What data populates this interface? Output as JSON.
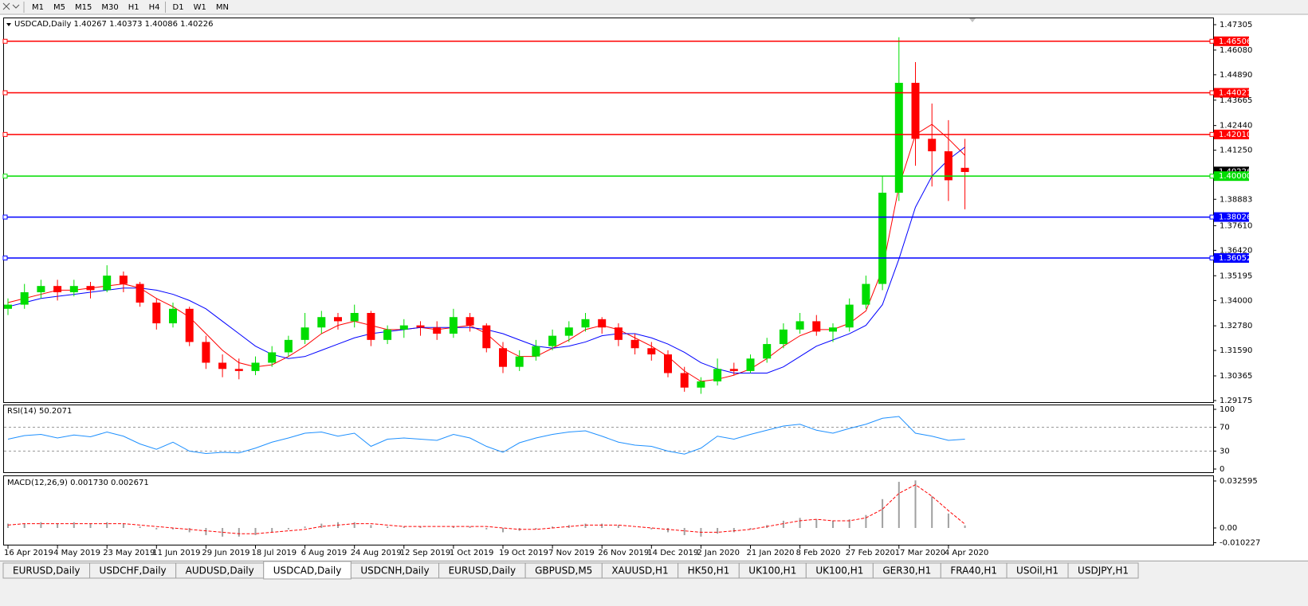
{
  "toolbar": {
    "buttons": [
      "M1",
      "M5",
      "M15",
      "M30",
      "H1",
      "H4",
      "D1",
      "W1",
      "MN"
    ]
  },
  "tabs": {
    "items": [
      "EURUSD,Daily",
      "USDCHF,Daily",
      "AUDUSD,Daily",
      "USDCAD,Daily",
      "USDCNH,Daily",
      "EURUSD,Daily",
      "GBPUSD,M5",
      "XAUUSD,H1",
      "HK50,H1",
      "UK100,H1",
      "UK100,H1",
      "GER30,H1",
      "FRA40,H1",
      "USOil,H1",
      "USDJPY,H1"
    ],
    "active": 3
  },
  "chart_data": [
    {
      "type": "candlestick",
      "title": "USDCAD,Daily  1.40267 1.40373 1.40086 1.40226",
      "categories": [
        "16 Apr 2019",
        null,
        null,
        "4 May 2019",
        null,
        null,
        "23 May 2019",
        null,
        null,
        "11 Jun 2019",
        null,
        null,
        "29 Jun 2019",
        null,
        null,
        "18 Jul 2019",
        null,
        null,
        "6 Aug 2019",
        null,
        null,
        "24 Aug 2019",
        null,
        null,
        "12 Sep 2019",
        null,
        null,
        "1 Oct 2019",
        null,
        null,
        "19 Oct 2019",
        null,
        null,
        "7 Nov 2019",
        null,
        null,
        "26 Nov 2019",
        null,
        null,
        "14 Dec 2019",
        null,
        null,
        "2 Jan 2020",
        null,
        null,
        "21 Jan 2020",
        null,
        null,
        "8 Feb 2020",
        null,
        null,
        "27 Feb 2020",
        null,
        null,
        "17 Mar 2020",
        null,
        null,
        "4 Apr 2020",
        null
      ],
      "open": [
        1.336,
        1.338,
        1.344,
        1.347,
        1.344,
        1.347,
        1.345,
        1.352,
        1.348,
        1.339,
        1.329,
        1.336,
        1.32,
        1.31,
        1.307,
        1.306,
        1.31,
        1.315,
        1.321,
        1.327,
        1.332,
        1.33,
        1.334,
        1.321,
        1.326,
        1.328,
        1.327,
        1.324,
        1.332,
        1.328,
        1.317,
        1.308,
        1.313,
        1.318,
        1.323,
        1.327,
        1.331,
        1.327,
        1.321,
        1.317,
        1.314,
        1.305,
        1.298,
        1.301,
        1.307,
        1.306,
        1.312,
        1.319,
        1.326,
        1.33,
        1.325,
        1.327,
        1.338,
        1.348,
        1.392,
        1.445,
        1.418,
        1.412,
        1.404
      ],
      "high": [
        1.341,
        1.348,
        1.35,
        1.35,
        1.35,
        1.349,
        1.357,
        1.354,
        1.349,
        1.341,
        1.339,
        1.337,
        1.323,
        1.314,
        1.312,
        1.313,
        1.318,
        1.323,
        1.334,
        1.335,
        1.334,
        1.338,
        1.335,
        1.328,
        1.331,
        1.33,
        1.33,
        1.336,
        1.334,
        1.329,
        1.32,
        1.316,
        1.321,
        1.326,
        1.33,
        1.334,
        1.332,
        1.329,
        1.324,
        1.32,
        1.316,
        1.308,
        1.303,
        1.312,
        1.31,
        1.314,
        1.322,
        1.329,
        1.334,
        1.333,
        1.329,
        1.341,
        1.352,
        1.4,
        1.467,
        1.455,
        1.435,
        1.427,
        1.418
      ],
      "low": [
        1.333,
        1.336,
        1.341,
        1.34,
        1.342,
        1.341,
        1.344,
        1.344,
        1.337,
        1.326,
        1.327,
        1.318,
        1.307,
        1.303,
        1.302,
        1.304,
        1.308,
        1.313,
        1.319,
        1.324,
        1.326,
        1.327,
        1.318,
        1.319,
        1.322,
        1.323,
        1.321,
        1.322,
        1.325,
        1.315,
        1.305,
        1.306,
        1.311,
        1.316,
        1.32,
        1.325,
        1.324,
        1.318,
        1.314,
        1.311,
        1.303,
        1.296,
        1.295,
        1.299,
        1.304,
        1.305,
        1.31,
        1.317,
        1.324,
        1.323,
        1.32,
        1.325,
        1.336,
        1.345,
        1.388,
        1.405,
        1.395,
        1.388,
        1.384
      ],
      "close": [
        1.338,
        1.344,
        1.347,
        1.344,
        1.347,
        1.345,
        1.352,
        1.348,
        1.339,
        1.329,
        1.336,
        1.32,
        1.31,
        1.307,
        1.306,
        1.31,
        1.315,
        1.321,
        1.327,
        1.332,
        1.33,
        1.334,
        1.321,
        1.326,
        1.328,
        1.327,
        1.324,
        1.332,
        1.328,
        1.317,
        1.308,
        1.313,
        1.318,
        1.323,
        1.327,
        1.331,
        1.327,
        1.321,
        1.317,
        1.314,
        1.305,
        1.298,
        1.301,
        1.307,
        1.306,
        1.312,
        1.319,
        1.326,
        1.33,
        1.325,
        1.327,
        1.338,
        1.348,
        1.392,
        1.445,
        1.418,
        1.412,
        1.398,
        1.402
      ],
      "up_color": "#00dd00",
      "down_color": "#ff0000",
      "series": [
        {
          "color": "#ff0000",
          "values": [
            1.339,
            1.341,
            1.343,
            1.345,
            1.345,
            1.346,
            1.347,
            1.348,
            1.346,
            1.341,
            1.337,
            1.332,
            1.324,
            1.316,
            1.31,
            1.308,
            1.309,
            1.313,
            1.318,
            1.324,
            1.328,
            1.33,
            1.328,
            1.326,
            1.326,
            1.327,
            1.326,
            1.327,
            1.328,
            1.324,
            1.317,
            1.313,
            1.313,
            1.317,
            1.321,
            1.326,
            1.328,
            1.326,
            1.322,
            1.318,
            1.313,
            1.306,
            1.301,
            1.302,
            1.304,
            1.307,
            1.312,
            1.318,
            1.323,
            1.326,
            1.326,
            1.329,
            1.335,
            1.355,
            1.395,
            1.42,
            1.425,
            1.418,
            1.41
          ]
        },
        {
          "color": "#0000ff",
          "values": [
            1.337,
            1.339,
            1.341,
            1.342,
            1.343,
            1.344,
            1.345,
            1.346,
            1.346,
            1.345,
            1.343,
            1.34,
            1.336,
            1.33,
            1.324,
            1.318,
            1.314,
            1.312,
            1.313,
            1.316,
            1.319,
            1.322,
            1.324,
            1.325,
            1.326,
            1.327,
            1.327,
            1.327,
            1.327,
            1.326,
            1.324,
            1.321,
            1.318,
            1.317,
            1.318,
            1.32,
            1.323,
            1.324,
            1.324,
            1.322,
            1.319,
            1.315,
            1.31,
            1.307,
            1.305,
            1.305,
            1.305,
            1.308,
            1.313,
            1.318,
            1.321,
            1.324,
            1.328,
            1.338,
            1.36,
            1.385,
            1.4,
            1.408,
            1.414
          ]
        }
      ],
      "ylim": [
        1.29098,
        1.47612
      ],
      "yticks": [
        1.47305,
        {
          "value": 1.4608,
          "label": "1.46080"
        },
        {
          "value": 1.4489,
          "label": "1.44890"
        },
        1.43665,
        {
          "value": 1.4244,
          "label": "1.42440"
        },
        {
          "value": 1.4125,
          "label": "1.41250"
        },
        1.38883,
        {
          "value": 1.3761,
          "label": "1.37610"
        },
        {
          "value": 1.3642,
          "label": "1.36420"
        },
        1.35195,
        {
          "value": 1.34,
          "label": "1.34000"
        },
        {
          "value": 1.3278,
          "label": "1.32780"
        },
        {
          "value": 1.3159,
          "label": "1.31590"
        },
        1.30365,
        1.29175
      ],
      "current_price": 1.40226,
      "levels": [
        {
          "value": 1.46506,
          "label": "1.46506",
          "color": "#ff0000"
        },
        {
          "value": 1.44021,
          "label": "1.44021",
          "color": "#ff0000"
        },
        {
          "value": 1.4201,
          "label": "1.42010",
          "color": "#ff0000"
        },
        {
          "value": 1.4,
          "label": "1.40000",
          "color": "#00dd00"
        },
        {
          "value": 1.38026,
          "label": "1.38026",
          "color": "#0000ff"
        },
        {
          "value": 1.36052,
          "label": "1.36052",
          "color": "#0000ff"
        }
      ]
    },
    {
      "type": "line",
      "title": "RSI(14) 50.2071",
      "color": "#1e90ff",
      "values": [
        50,
        56,
        58,
        52,
        57,
        54,
        62,
        55,
        42,
        33,
        45,
        30,
        26,
        28,
        27,
        35,
        45,
        52,
        60,
        62,
        55,
        60,
        38,
        50,
        52,
        50,
        48,
        58,
        52,
        38,
        28,
        44,
        52,
        58,
        62,
        64,
        55,
        45,
        40,
        38,
        30,
        25,
        35,
        55,
        50,
        58,
        65,
        72,
        75,
        65,
        60,
        68,
        75,
        85,
        88,
        60,
        55,
        48,
        50
      ],
      "ylim": [
        -4,
        106.7
      ],
      "yticks": [
        100,
        70,
        30,
        0
      ],
      "levels": [
        70,
        30
      ]
    },
    {
      "type": "macd",
      "title": "MACD(12,26,9) 0.001730 0.002671",
      "histogram_color": "#a0a0a0",
      "signal_color": "#ff0000",
      "histogram": [
        0.003,
        0.003,
        0.004,
        0.003,
        0.004,
        0.003,
        0.004,
        0.003,
        0.001,
        -0.001,
        -0.001,
        -0.003,
        -0.005,
        -0.006,
        -0.006,
        -0.005,
        -0.003,
        -0.001,
        0.001,
        0.003,
        0.004,
        0.004,
        0.002,
        0.001,
        0.001,
        0.001,
        0,
        0.001,
        0.001,
        -0.001,
        -0.003,
        -0.002,
        -0.001,
        0.001,
        0.002,
        0.003,
        0.003,
        0.002,
        0,
        -0.001,
        -0.003,
        -0.005,
        -0.006,
        -0.004,
        -0.003,
        -0.001,
        0.002,
        0.005,
        0.007,
        0.006,
        0.005,
        0.006,
        0.009,
        0.02,
        0.032,
        0.033,
        0.022,
        0.01,
        0.00173
      ],
      "signal": [
        0.002,
        0.003,
        0.003,
        0.003,
        0.003,
        0.003,
        0.003,
        0.003,
        0.002,
        0.001,
        0,
        -0.001,
        -0.002,
        -0.003,
        -0.004,
        -0.004,
        -0.003,
        -0.002,
        -0.001,
        0.001,
        0.002,
        0.003,
        0.003,
        0.002,
        0.001,
        0.001,
        0.001,
        0.001,
        0.001,
        0.001,
        0,
        -0.001,
        -0.001,
        0,
        0.001,
        0.002,
        0.002,
        0.002,
        0.001,
        0,
        -0.001,
        -0.002,
        -0.003,
        -0.003,
        -0.002,
        -0.001,
        0.001,
        0.003,
        0.005,
        0.006,
        0.005,
        0.005,
        0.007,
        0.013,
        0.024,
        0.03,
        0.022,
        0.012,
        0.002671
      ],
      "ylim": [
        -0.0116,
        0.0359
      ],
      "yticks": [
        0.032595,
        {
          "value": 0,
          "label": "0.00"
        },
        -0.010227
      ]
    }
  ]
}
